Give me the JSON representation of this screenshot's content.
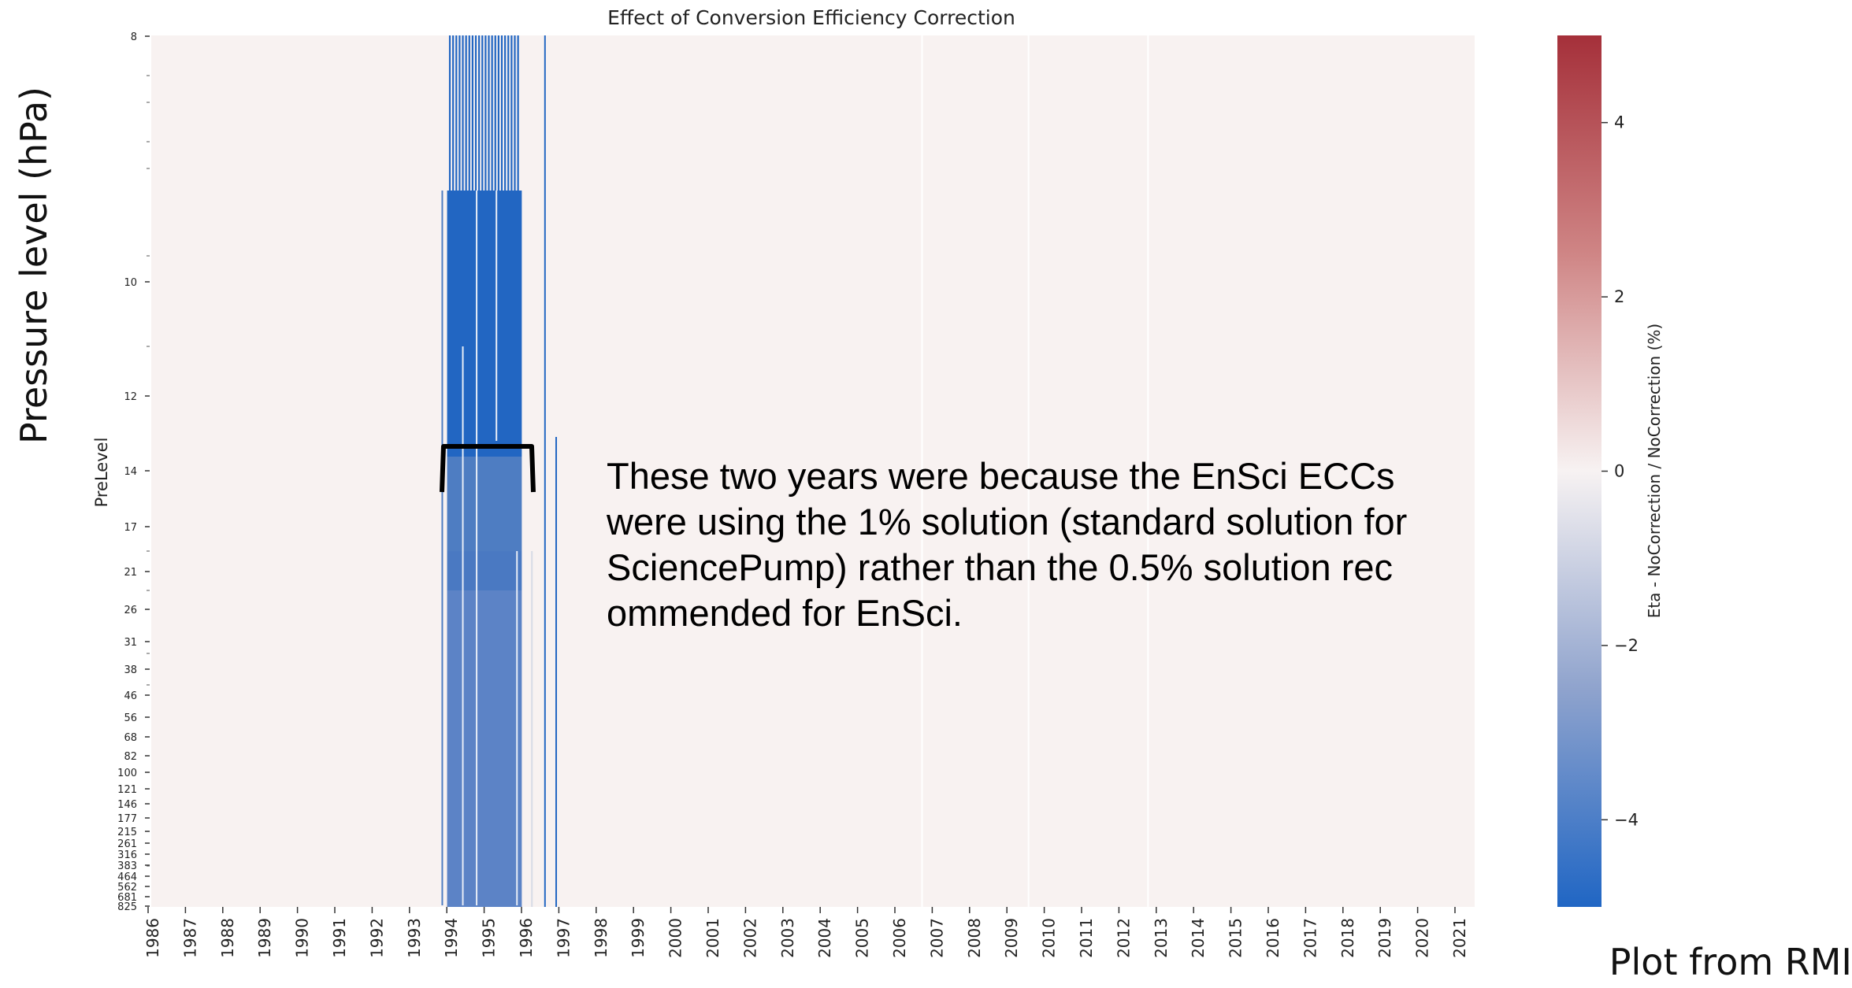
{
  "chart_data": {
    "type": "heatmap",
    "title": "Effect of Conversion Efficiency Correction",
    "xlabel": "",
    "ylabel": "PreLevel",
    "x_categories": [
      "1986",
      "1987",
      "1988",
      "1989",
      "1990",
      "1991",
      "1992",
      "1993",
      "1994",
      "1995",
      "1996",
      "1997",
      "1998",
      "1999",
      "2000",
      "2001",
      "2002",
      "2003",
      "2004",
      "2005",
      "2006",
      "2007",
      "2008",
      "2009",
      "2010",
      "2011",
      "2012",
      "2013",
      "2014",
      "2015",
      "2016",
      "2017",
      "2018",
      "2019",
      "2020",
      "2021"
    ],
    "y_tick_labels": [
      "8",
      "10",
      "12",
      "14",
      "17",
      "21",
      "26",
      "31",
      "38",
      "46",
      "56",
      "68",
      "82",
      "100",
      "121",
      "146",
      "177",
      "215",
      "261",
      "316",
      "383",
      "464",
      "562",
      "681",
      "825"
    ],
    "y_axis_inverted": true,
    "colorbar": {
      "label": "Eta - NoCorrection / NoCorrection  (%)",
      "min": -5,
      "max": 5,
      "ticks": [
        "4",
        "2",
        "0",
        "−2",
        "−4"
      ],
      "colormap": "vlag (blue-white-red)"
    },
    "description_values": {
      "background_value": 0,
      "affected_period": [
        "1994",
        "1996"
      ],
      "affected_value_range": [
        -5,
        -4
      ]
    },
    "colors": {
      "neutral": "#f8f2f1",
      "strong_blue": "#2266c2",
      "mid_blue": "#4e7dc2",
      "light_blue": "#5c83c6",
      "strong_red": "#b33a3e"
    }
  },
  "outer_ylabel": "Pressure level (hPa)",
  "annotation": "These two years were because the EnSci ECCs were using the 1% solution (standard solution for SciencePump) rather than the 0.5% solution rec ommended for EnSci.",
  "credit": "Plot from RMI"
}
